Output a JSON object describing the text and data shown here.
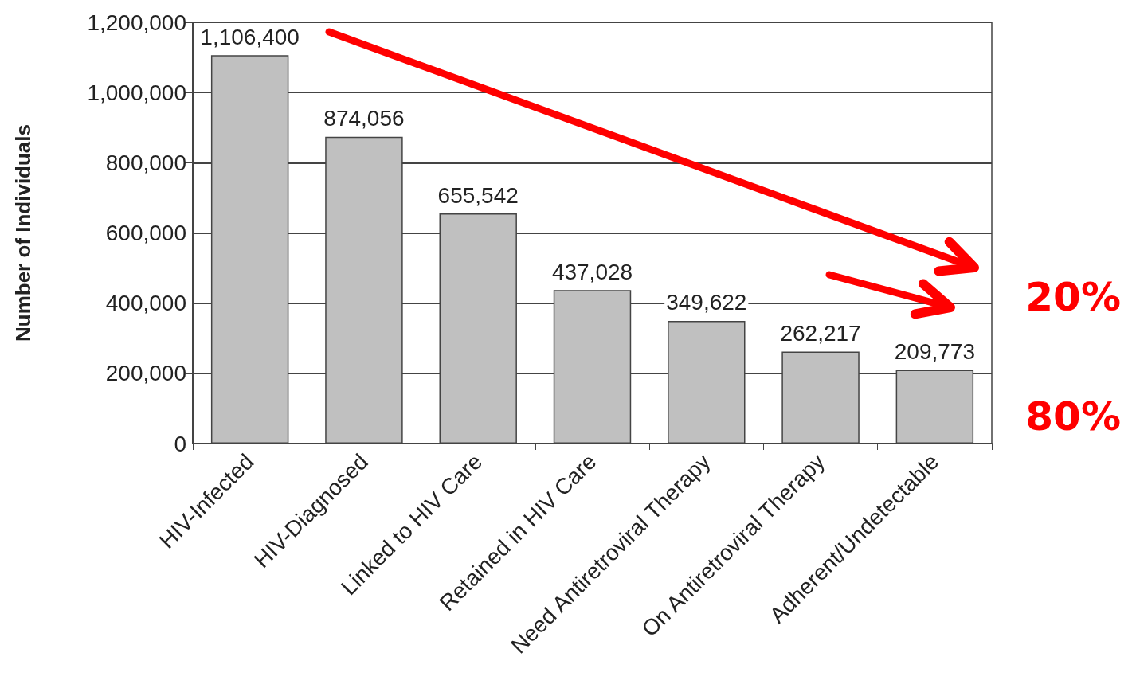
{
  "chart_data": {
    "type": "bar",
    "ylabel": "Number of Individuals",
    "categories": [
      "HIV-Infected",
      "HIV-Diagnosed",
      "Linked to HIV Care",
      "Retained in HIV Care",
      "Need Antiretroviral Therapy",
      "On Antiretroviral Therapy",
      "Adherent/Undetectable"
    ],
    "values": [
      1106400,
      874056,
      655542,
      437028,
      349622,
      262217,
      209773
    ],
    "value_labels": [
      "1,106,400",
      "874,056",
      "655,542",
      "437,028",
      "349,622",
      "262,217",
      "209,773"
    ],
    "color": "#c0c0c0",
    "grid": "y",
    "ylim": [
      0,
      1200000
    ],
    "yticks": [
      {
        "value": 0,
        "label": "0"
      },
      {
        "value": 200000,
        "label": "200,000"
      },
      {
        "value": 400000,
        "label": "400,000"
      },
      {
        "value": 600000,
        "label": "600,000"
      },
      {
        "value": 800000,
        "label": "800,000"
      },
      {
        "value": 1000000,
        "label": "1,000,000"
      },
      {
        "value": 1200000,
        "label": "1,200,000"
      }
    ],
    "annotations": [
      "20%",
      "80%"
    ]
  }
}
